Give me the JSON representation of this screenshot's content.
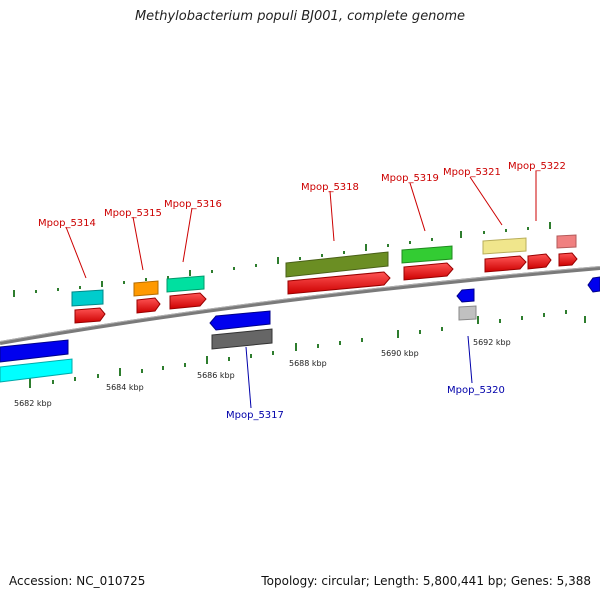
{
  "title": "Methylobacterium populi BJ001, complete genome",
  "footer": {
    "accession": "Accession: NC_010725",
    "summary": "Topology: circular; Length: 5,800,441 bp; Genes: 5,388"
  },
  "colors": {
    "backbone": "#808080",
    "tick": "#2e7d2e",
    "label_forward": "#cc0000",
    "label_reverse": "#0000aa"
  },
  "genome_view": {
    "scale_labels": [
      "5682 kbp",
      "5684 kbp",
      "5686 kbp",
      "5688 kbp",
      "5690 kbp",
      "5692 kbp"
    ],
    "gene_labels": [
      {
        "text": "Mpop_5314",
        "strand": "forward"
      },
      {
        "text": "Mpop_5315",
        "strand": "forward"
      },
      {
        "text": "Mpop_5316",
        "strand": "forward"
      },
      {
        "text": "Mpop_5318",
        "strand": "forward"
      },
      {
        "text": "Mpop_5319",
        "strand": "forward"
      },
      {
        "text": "Mpop_5321",
        "strand": "forward"
      },
      {
        "text": "Mpop_5322",
        "strand": "forward"
      },
      {
        "text": "Mpop_5317",
        "strand": "reverse"
      },
      {
        "text": "Mpop_5320",
        "strand": "reverse"
      }
    ],
    "feature_colors": {
      "cds": "#ff0000",
      "reverse_cds": "#0000ff",
      "cog_cyan": "#00cccc",
      "cog_orange": "#ff9900",
      "cog_spring": "#00e0a0",
      "cog_olive": "#6b8e23",
      "cog_green": "#22cc22",
      "cog_khaki": "#f0e68c",
      "cog_pink": "#f08080",
      "cog_gray": "#666666",
      "cog_lightgray": "#c0c0c0",
      "cog_aqua": "#00ffff"
    }
  }
}
